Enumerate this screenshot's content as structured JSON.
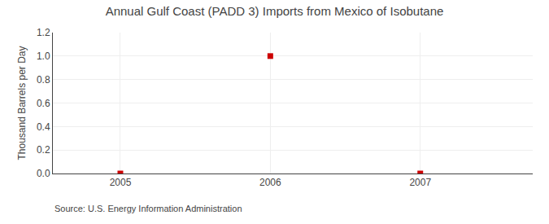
{
  "chart_data": {
    "type": "scatter",
    "title": "Annual Gulf Coast (PADD 3) Imports from Mexico of Isobutane",
    "y_label": "Thousand Barrels per Day",
    "annotations": [
      "Source: U.S. Energy Information Administration"
    ],
    "x": [
      2005,
      2006,
      2007
    ],
    "values": [
      0.0,
      1.0,
      0.0
    ],
    "color": "#cc0000",
    "marker": "square",
    "xlim": [
      2004.55,
      2007.75
    ],
    "ylim": [
      0.0,
      1.2
    ],
    "xticks": [
      2005,
      2006,
      2007
    ],
    "yticks": [
      {
        "value": 0.0,
        "label": "0.0"
      },
      0.2,
      0.4,
      0.6,
      0.8,
      {
        "value": 1.0,
        "label": "1.0"
      },
      1.2
    ],
    "grid": true
  }
}
